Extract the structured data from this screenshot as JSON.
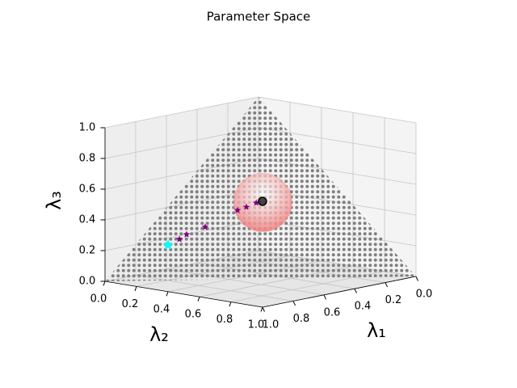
{
  "chart_data": {
    "type": "scatter3d",
    "title": "Parameter Space",
    "xlabel": "λ₁",
    "ylabel": "λ₂",
    "zlabel": "λ₃",
    "xlim": [
      0,
      1
    ],
    "ylim": [
      0,
      1
    ],
    "zlim": [
      0,
      1
    ],
    "xticks": [
      {
        "value": 0,
        "label": "0.0"
      },
      0.2,
      0.4,
      0.6,
      0.8,
      {
        "value": 1,
        "label": "1.0"
      }
    ],
    "yticks": [
      {
        "value": 0,
        "label": "0.0"
      },
      0.2,
      0.4,
      0.6,
      0.8,
      {
        "value": 1,
        "label": "1.0"
      }
    ],
    "zticks": [
      {
        "value": 0,
        "label": "0.0"
      },
      0.2,
      0.4,
      0.6,
      0.8,
      {
        "value": 1,
        "label": "1.0"
      }
    ],
    "grid": true,
    "simplex_color": "#808080",
    "sphere": {
      "x": 0.28,
      "y": 0.3,
      "z": 0.42,
      "radius": 0.19,
      "color": "#f08080"
    },
    "series": [
      {
        "marker": "star",
        "color": "#800080",
        "x": [
          0.647,
          0.611,
          0.531,
          0.382,
          0.345,
          0.302
        ],
        "y": [
          0.128,
          0.139,
          0.179,
          0.239,
          0.259,
          0.28
        ],
        "z": [
          0.225,
          0.25,
          0.29,
          0.379,
          0.396,
          0.418
        ]
      },
      {
        "marker": "star",
        "color": "#00ffff",
        "x": [
          0.699
        ],
        "y": [
          0.107
        ],
        "z": [
          0.194
        ]
      },
      {
        "marker": "circle",
        "color": "#000000",
        "x": [
          0.278
        ],
        "y": [
          0.296
        ],
        "z": [
          0.426
        ]
      }
    ]
  }
}
